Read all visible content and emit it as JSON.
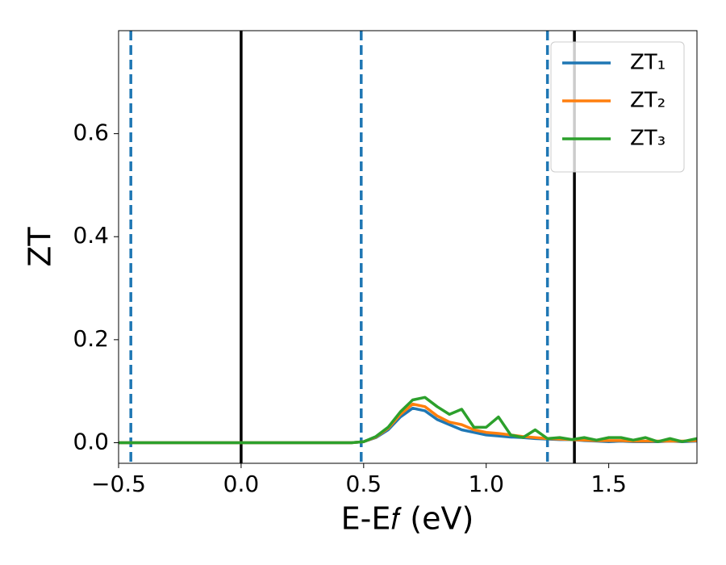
{
  "chart_data": {
    "type": "line",
    "xlabel": "E-E𝑓 (eV)",
    "ylabel": "ZT",
    "x": [
      -0.5,
      0.0,
      0.45,
      0.5,
      0.55,
      0.6,
      0.65,
      0.7,
      0.75,
      0.8,
      0.85,
      0.9,
      0.95,
      1.0,
      1.05,
      1.1,
      1.15,
      1.2,
      1.25,
      1.3,
      1.35,
      1.4,
      1.45,
      1.5,
      1.55,
      1.6,
      1.65,
      1.7,
      1.75,
      1.8,
      1.86
    ],
    "series": [
      {
        "name": "ZT₁",
        "color": "#1f77b4",
        "values": [
          0,
          0,
          0,
          0.002,
          0.01,
          0.025,
          0.05,
          0.067,
          0.062,
          0.045,
          0.035,
          0.025,
          0.02,
          0.015,
          0.013,
          0.011,
          0.01,
          0.008,
          0.007,
          0.006,
          0.006,
          0.004,
          0.003,
          0.002,
          0.003,
          0.002,
          0.002,
          0.002,
          0.003,
          0.002,
          0.003
        ]
      },
      {
        "name": "ZT₂",
        "color": "#ff7f0e",
        "values": [
          0,
          0,
          0,
          0.002,
          0.011,
          0.028,
          0.055,
          0.075,
          0.07,
          0.052,
          0.04,
          0.035,
          0.025,
          0.02,
          0.018,
          0.015,
          0.012,
          0.01,
          0.008,
          0.007,
          0.006,
          0.005,
          0.004,
          0.004,
          0.004,
          0.003,
          0.003,
          0.003,
          0.003,
          0.003,
          0.004
        ]
      },
      {
        "name": "ZT₃",
        "color": "#2ca02c",
        "values": [
          0,
          0,
          0,
          0.002,
          0.012,
          0.03,
          0.06,
          0.083,
          0.088,
          0.07,
          0.055,
          0.065,
          0.03,
          0.03,
          0.05,
          0.015,
          0.01,
          0.025,
          0.008,
          0.01,
          0.006,
          0.01,
          0.005,
          0.01,
          0.01,
          0.005,
          0.01,
          0.002,
          0.008,
          0.002,
          0.008
        ]
      }
    ],
    "vlines": [
      {
        "x": -0.45,
        "color": "#1f77b4",
        "dashed": true
      },
      {
        "x": 0.0,
        "color": "#000000",
        "dashed": false
      },
      {
        "x": 0.49,
        "color": "#1f77b4",
        "dashed": true
      },
      {
        "x": 1.25,
        "color": "#1f77b4",
        "dashed": true
      },
      {
        "x": 1.36,
        "color": "#000000",
        "dashed": false
      }
    ],
    "xlim": [
      -0.5,
      1.86
    ],
    "ylim": [
      -0.04,
      0.8
    ],
    "xticks": [
      {
        "value": -0.5,
        "label": "−0.5"
      },
      {
        "value": 0,
        "label": "0.0"
      },
      {
        "value": 0.5,
        "label": "0.5"
      },
      {
        "value": 1,
        "label": "1.0"
      },
      {
        "value": 1.5,
        "label": "1.5"
      }
    ],
    "yticks": [
      {
        "value": 0,
        "label": "0.0"
      },
      {
        "value": 0.2,
        "label": "0.2"
      },
      {
        "value": 0.4,
        "label": "0.4"
      },
      {
        "value": 0.6,
        "label": "0.6"
      }
    ],
    "legend": "upper right",
    "grid": false
  }
}
